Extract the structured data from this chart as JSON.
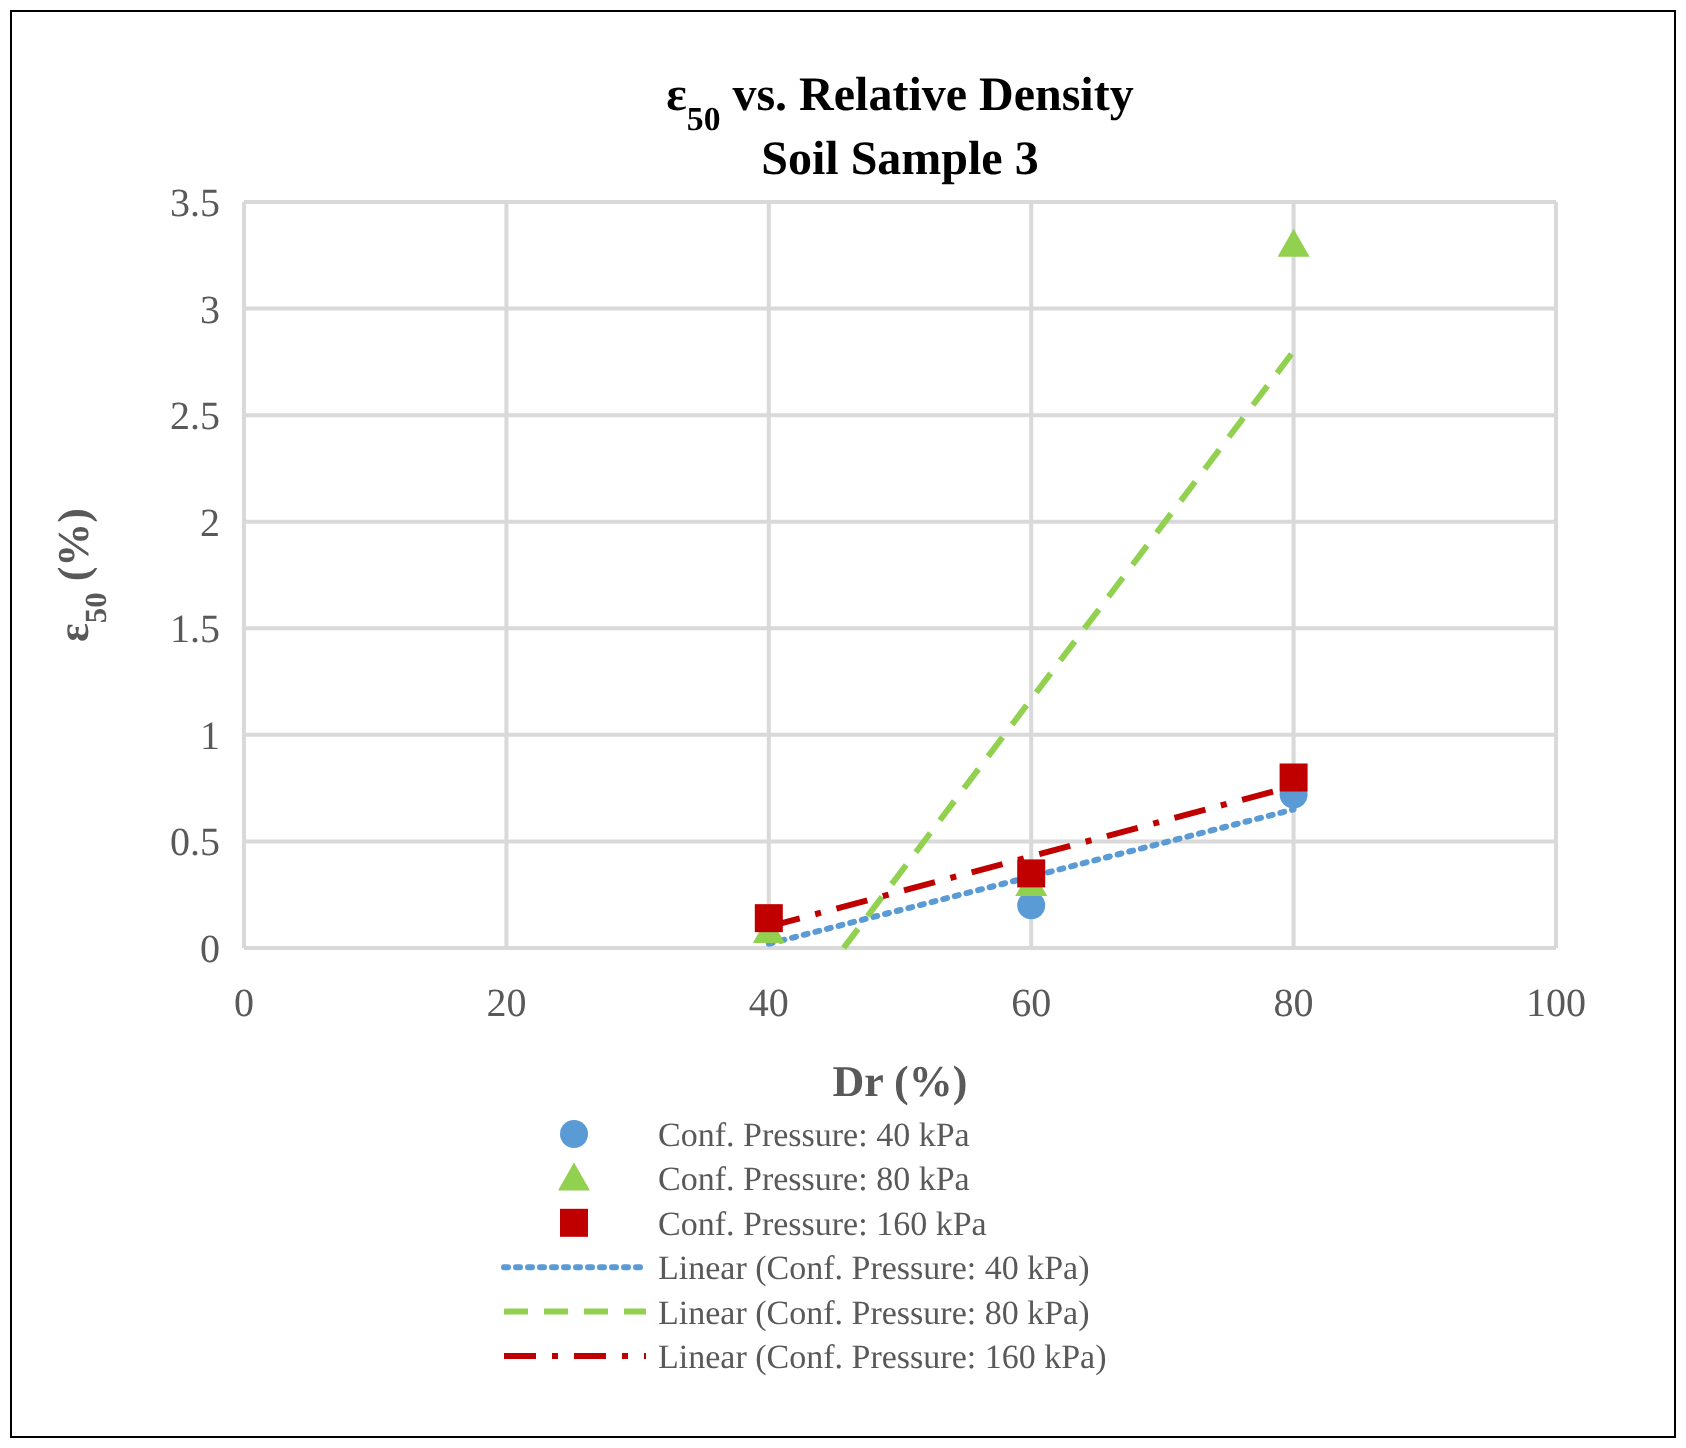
{
  "chart_data": {
    "type": "scatter",
    "title": "ε$_{50}$ vs. Relative Density",
    "subtitle": "Soil Sample 3",
    "xlabel": "Dr (%)",
    "ylabel": "ε$_{50}$ (%)",
    "x": [
      40,
      60,
      80
    ],
    "xlim": [
      0,
      100
    ],
    "xticks": [
      0,
      20,
      40,
      60,
      80,
      100
    ],
    "ylim": [
      0,
      3.5
    ],
    "yticks": [
      0,
      0.5,
      1,
      1.5,
      2,
      2.5,
      3,
      3.5
    ],
    "grid": true,
    "legend": "bottom",
    "series": [
      {
        "name": "Conf. Pressure: 40 kPa",
        "type": "scatter",
        "marker": "circle",
        "color": "#5b9bd5",
        "values": [
          null,
          0.2,
          0.72
        ]
      },
      {
        "name": "Conf. Pressure: 80 kPa",
        "type": "scatter",
        "marker": "triangle",
        "color": "#92d050",
        "values": [
          0.08,
          0.3,
          3.3
        ]
      },
      {
        "name": "Conf. Pressure: 160 kPa",
        "type": "scatter",
        "marker": "square",
        "color": "#c00000",
        "values": [
          0.14,
          0.35,
          0.8
        ]
      },
      {
        "name": "Linear (Conf. Pressure: 40 kPa)",
        "type": "line",
        "line_style": "dotted",
        "color": "#5b9bd5",
        "x": [
          40,
          80
        ],
        "values": [
          0.02,
          0.65
        ]
      },
      {
        "name": "Linear (Conf. Pressure: 80 kPa)",
        "type": "line",
        "line_style": "dashed",
        "color": "#92d050",
        "x": [
          45.7,
          80
        ],
        "values": [
          0,
          2.8
        ]
      },
      {
        "name": "Linear (Conf. Pressure: 160 kPa)",
        "type": "line",
        "line_style": "dashdot",
        "color": "#c00000",
        "x": [
          40,
          80
        ],
        "values": [
          0.1,
          0.76
        ]
      }
    ]
  }
}
